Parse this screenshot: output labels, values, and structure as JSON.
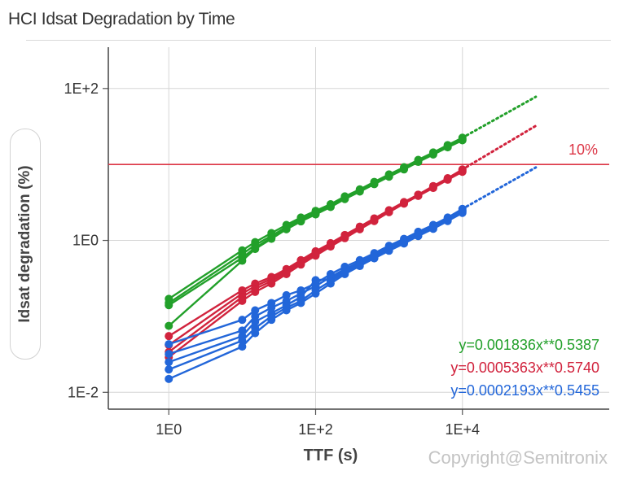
{
  "title": "HCI Idsat Degradation by Time",
  "watermark": "Copyright@Semitronix",
  "chart_data": {
    "type": "line",
    "xscale": "log",
    "yscale": "log",
    "xlabel": "TTF (s)",
    "ylabel": "Idsat degradation (%)",
    "xlim": [
      0.15,
      1000000
    ],
    "ylim": [
      0.006,
      350
    ],
    "xticks": [
      {
        "value": 1,
        "label": "1E0"
      },
      {
        "value": 100,
        "label": "1E+2"
      },
      {
        "value": 10000,
        "label": "1E+4"
      }
    ],
    "yticks": [
      {
        "value": 0.01,
        "label": "1E-2"
      },
      {
        "value": 1,
        "label": "1E0"
      },
      {
        "value": 100,
        "label": "1E+2"
      }
    ],
    "grid": true,
    "x": [
      1,
      10,
      15,
      25,
      40,
      63,
      100,
      160,
      250,
      400,
      630,
      1000,
      1600,
      2500,
      4000,
      6300,
      10000
    ],
    "threshold": {
      "value": 10,
      "label": "10%",
      "color": "#dc3545"
    },
    "extrapolation_x_end": 100000,
    "series": [
      {
        "color": "#22a02a",
        "equation": "y=0.001836x**0.5387",
        "runs": [
          [
            0.17,
            0.74,
            0.95,
            1.25,
            1.6,
            2.0,
            2.45,
            3.0,
            3.8,
            4.7,
            5.9,
            7.4,
            9.2,
            11.5,
            14.4,
            18.0,
            22.5
          ],
          [
            0.15,
            0.66,
            0.87,
            1.15,
            1.5,
            1.9,
            2.35,
            2.9,
            3.7,
            4.6,
            5.8,
            7.2,
            9.0,
            11.2,
            14.0,
            17.5,
            21.8
          ],
          [
            0.14,
            0.59,
            0.8,
            1.08,
            1.42,
            1.8,
            2.25,
            2.8,
            3.6,
            4.5,
            5.6,
            7.0,
            8.8,
            11.0,
            13.7,
            17.0,
            21.2
          ],
          [
            0.075,
            0.54,
            0.77,
            1.05,
            1.4,
            1.78,
            2.2,
            2.75,
            3.5,
            4.4,
            5.5,
            6.9,
            8.6,
            10.8,
            13.5,
            16.8,
            20.8
          ]
        ]
      },
      {
        "color": "#d1233d",
        "equation": "y=0.0005363x**0.5740",
        "runs": [
          [
            0.055,
            0.22,
            0.27,
            0.33,
            0.42,
            0.55,
            0.72,
            0.92,
            1.18,
            1.52,
            1.95,
            2.5,
            3.2,
            4.0,
            5.2,
            6.6,
            8.6
          ],
          [
            0.042,
            0.2,
            0.25,
            0.31,
            0.4,
            0.52,
            0.69,
            0.89,
            1.14,
            1.48,
            1.9,
            2.45,
            3.15,
            4.0,
            5.1,
            6.5,
            8.4
          ],
          [
            0.034,
            0.18,
            0.23,
            0.29,
            0.38,
            0.5,
            0.66,
            0.86,
            1.1,
            1.44,
            1.85,
            2.4,
            3.1,
            3.9,
            5.0,
            6.4,
            8.2
          ],
          [
            0.029,
            0.16,
            0.21,
            0.27,
            0.36,
            0.48,
            0.63,
            0.83,
            1.07,
            1.4,
            1.8,
            2.35,
            3.05,
            3.85,
            4.9,
            6.3,
            8.0
          ]
        ]
      },
      {
        "color": "#2266d9",
        "equation": "y=0.0002193x**0.5455",
        "runs": [
          [
            0.043,
            0.09,
            0.12,
            0.15,
            0.19,
            0.22,
            0.27,
            0.36,
            0.45,
            0.55,
            0.68,
            0.85,
            1.05,
            1.3,
            1.6,
            2.0,
            2.6
          ],
          [
            0.032,
            0.065,
            0.1,
            0.13,
            0.16,
            0.2,
            0.25,
            0.33,
            0.42,
            0.52,
            0.65,
            0.82,
            1.0,
            1.25,
            1.55,
            1.95,
            2.5
          ],
          [
            0.025,
            0.055,
            0.085,
            0.11,
            0.14,
            0.18,
            0.3,
            0.31,
            0.4,
            0.5,
            0.62,
            0.79,
            0.97,
            1.22,
            1.5,
            1.9,
            2.45
          ],
          [
            0.02,
            0.048,
            0.07,
            0.1,
            0.13,
            0.16,
            0.22,
            0.29,
            0.38,
            0.48,
            0.6,
            0.76,
            0.94,
            1.18,
            1.45,
            1.85,
            2.4
          ],
          [
            0.015,
            0.04,
            0.06,
            0.09,
            0.12,
            0.15,
            0.2,
            0.27,
            0.36,
            0.46,
            0.58,
            0.73,
            0.91,
            1.14,
            1.42,
            1.8,
            2.3
          ]
        ]
      }
    ]
  }
}
